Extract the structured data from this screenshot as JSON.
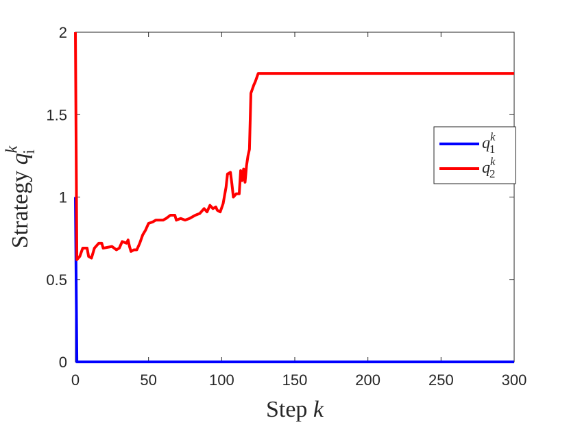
{
  "chart_data": {
    "type": "line",
    "xlabel": {
      "text": "Step ",
      "var": "k"
    },
    "ylabel": {
      "text": "Strategy ",
      "var": "q",
      "sub": "i",
      "sup": "k"
    },
    "xlim": [
      0,
      300
    ],
    "xticks": [
      0,
      50,
      100,
      150,
      200,
      250,
      300
    ],
    "ylim": [
      0,
      2
    ],
    "yticks": [
      0,
      0.5,
      1,
      1.5,
      2
    ],
    "grid": false,
    "legend": "right",
    "series": [
      {
        "name": {
          "var": "q",
          "sub": "1",
          "sup": "k"
        },
        "color": "#0000ff",
        "x": [
          0,
          1,
          300
        ],
        "values": [
          1.0,
          0,
          0
        ]
      },
      {
        "name": {
          "var": "q",
          "sub": "2",
          "sup": "k"
        },
        "color": "#ff0000",
        "x": [
          0,
          1,
          3,
          5,
          8,
          9,
          11,
          13,
          16,
          18,
          19,
          25,
          28,
          30,
          32,
          35,
          36,
          37,
          38,
          40,
          42,
          44,
          46,
          48,
          50,
          53,
          55,
          60,
          62,
          65,
          68,
          69,
          72,
          75,
          78,
          82,
          85,
          88,
          90,
          92,
          94,
          96,
          97,
          99,
          101,
          103,
          104,
          106,
          107,
          108,
          110,
          112,
          113,
          114,
          115,
          116,
          117,
          118,
          119,
          120,
          122,
          123,
          125,
          300
        ],
        "values": [
          2.0,
          0.62,
          0.64,
          0.69,
          0.69,
          0.64,
          0.63,
          0.69,
          0.72,
          0.72,
          0.69,
          0.7,
          0.68,
          0.69,
          0.73,
          0.72,
          0.74,
          0.7,
          0.67,
          0.68,
          0.68,
          0.72,
          0.77,
          0.8,
          0.84,
          0.85,
          0.86,
          0.86,
          0.87,
          0.89,
          0.89,
          0.86,
          0.87,
          0.86,
          0.87,
          0.89,
          0.9,
          0.93,
          0.91,
          0.95,
          0.93,
          0.94,
          0.92,
          0.91,
          0.96,
          1.06,
          1.14,
          1.15,
          1.08,
          1.0,
          1.02,
          1.02,
          1.16,
          1.1,
          1.17,
          1.09,
          1.19,
          1.25,
          1.29,
          1.63,
          1.68,
          1.7,
          1.75,
          1.75
        ]
      }
    ]
  }
}
